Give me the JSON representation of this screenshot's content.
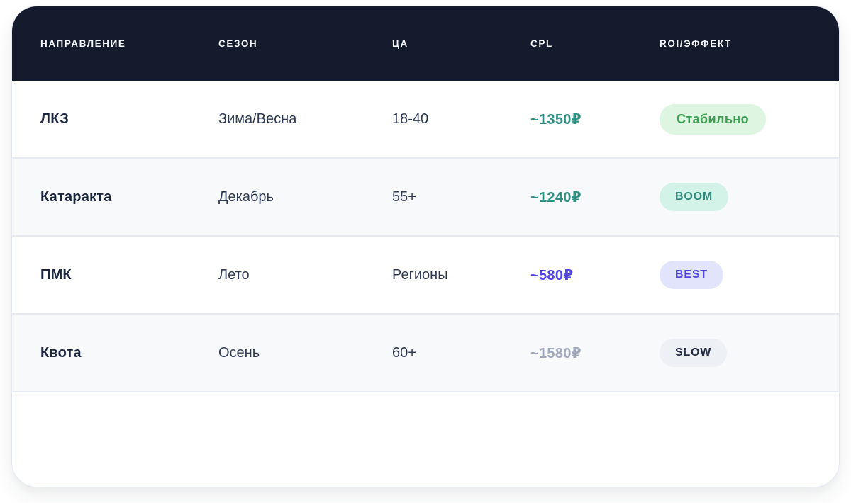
{
  "table": {
    "columns": {
      "direction": "НАПРАВЛЕНИЕ",
      "season": "СЕЗОН",
      "audience": "ЦА",
      "cpl": "CPL",
      "roi": "ROI/ЭФФЕКТ"
    },
    "rows": [
      {
        "direction": "ЛКЗ",
        "season": "Зима/Весна",
        "audience": "18-40",
        "cpl": "~1350₽",
        "cpl_color": "#2e9184",
        "badge": {
          "label": "Стабильно",
          "color": "#3d9e53",
          "bg": "#def5e1",
          "style": "word"
        }
      },
      {
        "direction": "Катаракта",
        "season": "Декабрь",
        "audience": "55+",
        "cpl": "~1240₽",
        "cpl_color": "#2e9184",
        "badge": {
          "label": "BOOM",
          "color": "#2e8a7b",
          "bg": "#d3f2e8",
          "style": "upper"
        }
      },
      {
        "direction": "ПМК",
        "season": "Лето",
        "audience": "Регионы",
        "cpl": "~580₽",
        "cpl_color": "#5145e6",
        "badge": {
          "label": "BEST",
          "color": "#4f46e5",
          "bg": "#e1e4fb",
          "style": "upper"
        }
      },
      {
        "direction": "Квота",
        "season": "Осень",
        "audience": "60+",
        "cpl": "~1580₽",
        "cpl_color": "#9fa9bb",
        "badge": {
          "label": "SLOW",
          "color": "#232d45",
          "bg": "#edf0f5",
          "style": "upper"
        }
      }
    ],
    "theme": {
      "header_bg": "#141b2d",
      "header_text": "#f4f6fa",
      "row_alt_bg": "#f8f9fb",
      "divider": "#e7eaef"
    }
  }
}
